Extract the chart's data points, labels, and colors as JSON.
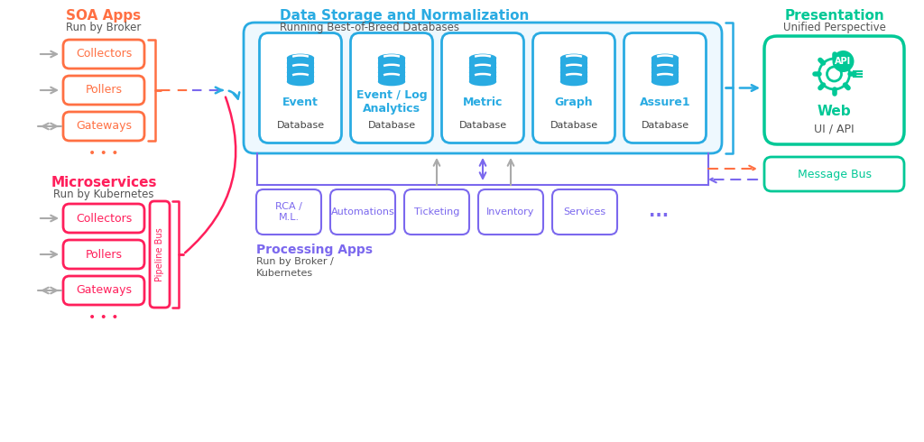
{
  "bg_color": "#ffffff",
  "orange": "#FF7043",
  "red": "#FF1F5B",
  "blue": "#29ABE2",
  "green": "#00C896",
  "purple": "#7B68EE",
  "gray": "#AAAAAA",
  "soa_title": "SOA Apps",
  "soa_subtitle": "Run by Broker",
  "soa_boxes": [
    "Collectors",
    "Pollers",
    "Gateways"
  ],
  "micro_title": "Microservices",
  "micro_subtitle": "Run by Kubernetes",
  "micro_boxes": [
    "Collectors",
    "Pollers",
    "Gateways"
  ],
  "pipeline_label": "Pipeline Bus",
  "data_title": "Data Storage and Normalization",
  "data_subtitle": "Running Best-of-Breed Databases",
  "databases": [
    {
      "name": "Event",
      "sub": "Database"
    },
    {
      "name": "Event / Log\nAnalytics",
      "sub": "Database"
    },
    {
      "name": "Metric",
      "sub": "Database"
    },
    {
      "name": "Graph",
      "sub": "Database"
    },
    {
      "name": "Assure1",
      "sub": "Database"
    }
  ],
  "presentation_title": "Presentation",
  "presentation_subtitle": "Unified Perspective",
  "web_label": "Web",
  "web_sub": "UI / API",
  "msgbus_label": "Message Bus",
  "proc_title": "Processing Apps",
  "proc_subtitle": "Run by Broker /\nKubernetes",
  "proc_boxes": [
    "RCA /\nM.L.",
    "Automations",
    "Ticketing",
    "Inventory",
    "Services",
    "..."
  ]
}
